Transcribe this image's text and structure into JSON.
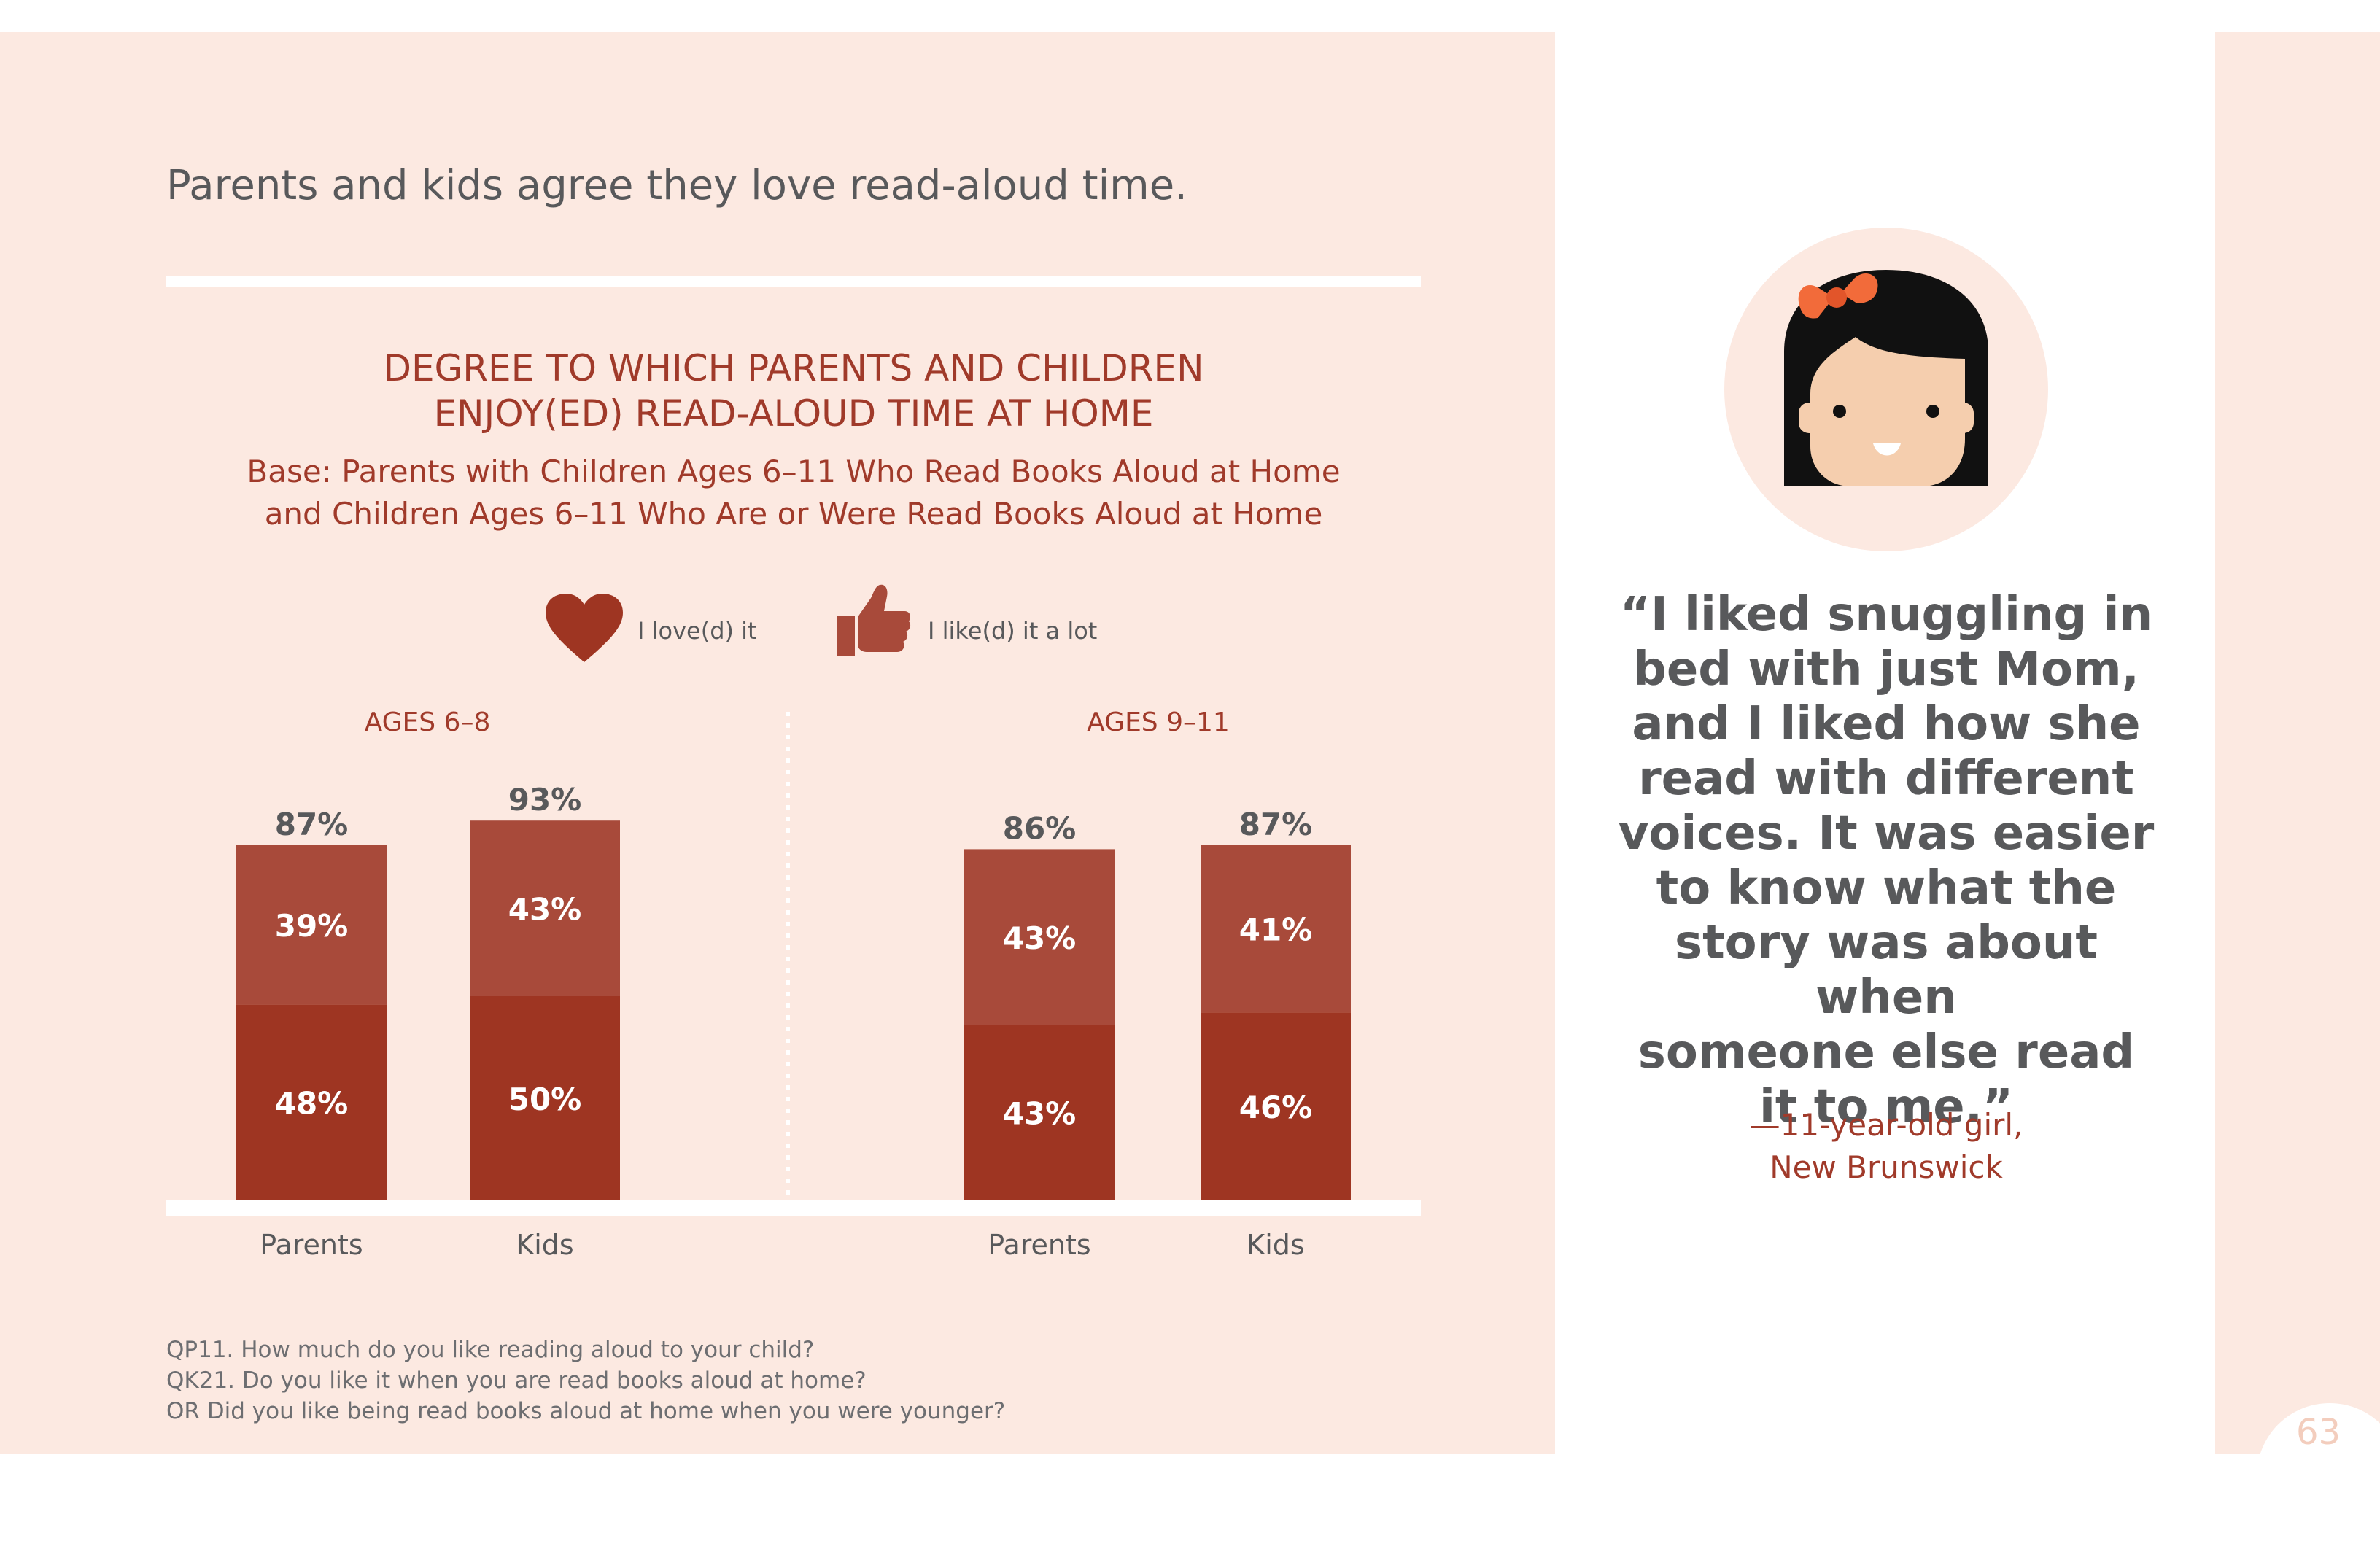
{
  "headline": "Parents and kids agree they love read-aloud time.",
  "chart_data": {
    "type": "bar",
    "stacked": true,
    "title_lines": [
      "DEGREE TO WHICH PARENTS AND CHILDREN",
      "ENJOY(ED) READ-ALOUD TIME AT HOME"
    ],
    "subtitle_lines": [
      "Base: Parents with Children Ages 6–11 Who Read Books Aloud at Home",
      "and Children Ages 6–11 Who Are or Were Read Books Aloud at Home"
    ],
    "legend_position": "top-center",
    "legend": [
      {
        "icon": "heart-icon",
        "label": "I love(d) it",
        "color": "#9e3522"
      },
      {
        "icon": "thumbs-up-icon",
        "label": "I like(d) it a lot",
        "color": "#a84a3a"
      }
    ],
    "ylim": [
      0,
      100
    ],
    "groups": [
      {
        "label": "AGES 6–8",
        "bars": [
          {
            "category": "Parents",
            "love": 48,
            "like": 39,
            "total": 87,
            "love_label": "48%",
            "like_label": "39%",
            "total_label": "87%"
          },
          {
            "category": "Kids",
            "love": 50,
            "like": 43,
            "total": 93,
            "love_label": "50%",
            "like_label": "43%",
            "total_label": "93%"
          }
        ]
      },
      {
        "label": "AGES 9–11",
        "bars": [
          {
            "category": "Parents",
            "love": 43,
            "like": 43,
            "total": 86,
            "love_label": "43%",
            "like_label": "43%",
            "total_label": "86%"
          },
          {
            "category": "Kids",
            "love": 46,
            "like": 41,
            "total": 87,
            "love_label": "46%",
            "like_label": "41%",
            "total_label": "87%"
          }
        ]
      }
    ],
    "colors": {
      "love": "#9e3522",
      "like": "#a84a3a",
      "total_label": "#58595b",
      "inner_label": "#ffffff",
      "axis": "#ffffff",
      "divider": "#ffffff"
    }
  },
  "footnotes": [
    "QP11. How much do you like reading aloud to your child?",
    "QK21. Do you like it when you are read books aloud at home?",
    "OR Did you like being read books aloud at home when you were younger?"
  ],
  "quote_lines": [
    "“I liked snuggling in",
    "bed with just Mom,",
    "and I liked how she",
    "read with different",
    "voices. It was easier",
    "to know what the",
    "story was about when",
    "someone else read",
    "it to me.”"
  ],
  "attribution_lines": [
    "—11-year-old girl,",
    "New Brunswick"
  ],
  "avatar_icon": "girl-with-bow-icon",
  "page_number": "63"
}
